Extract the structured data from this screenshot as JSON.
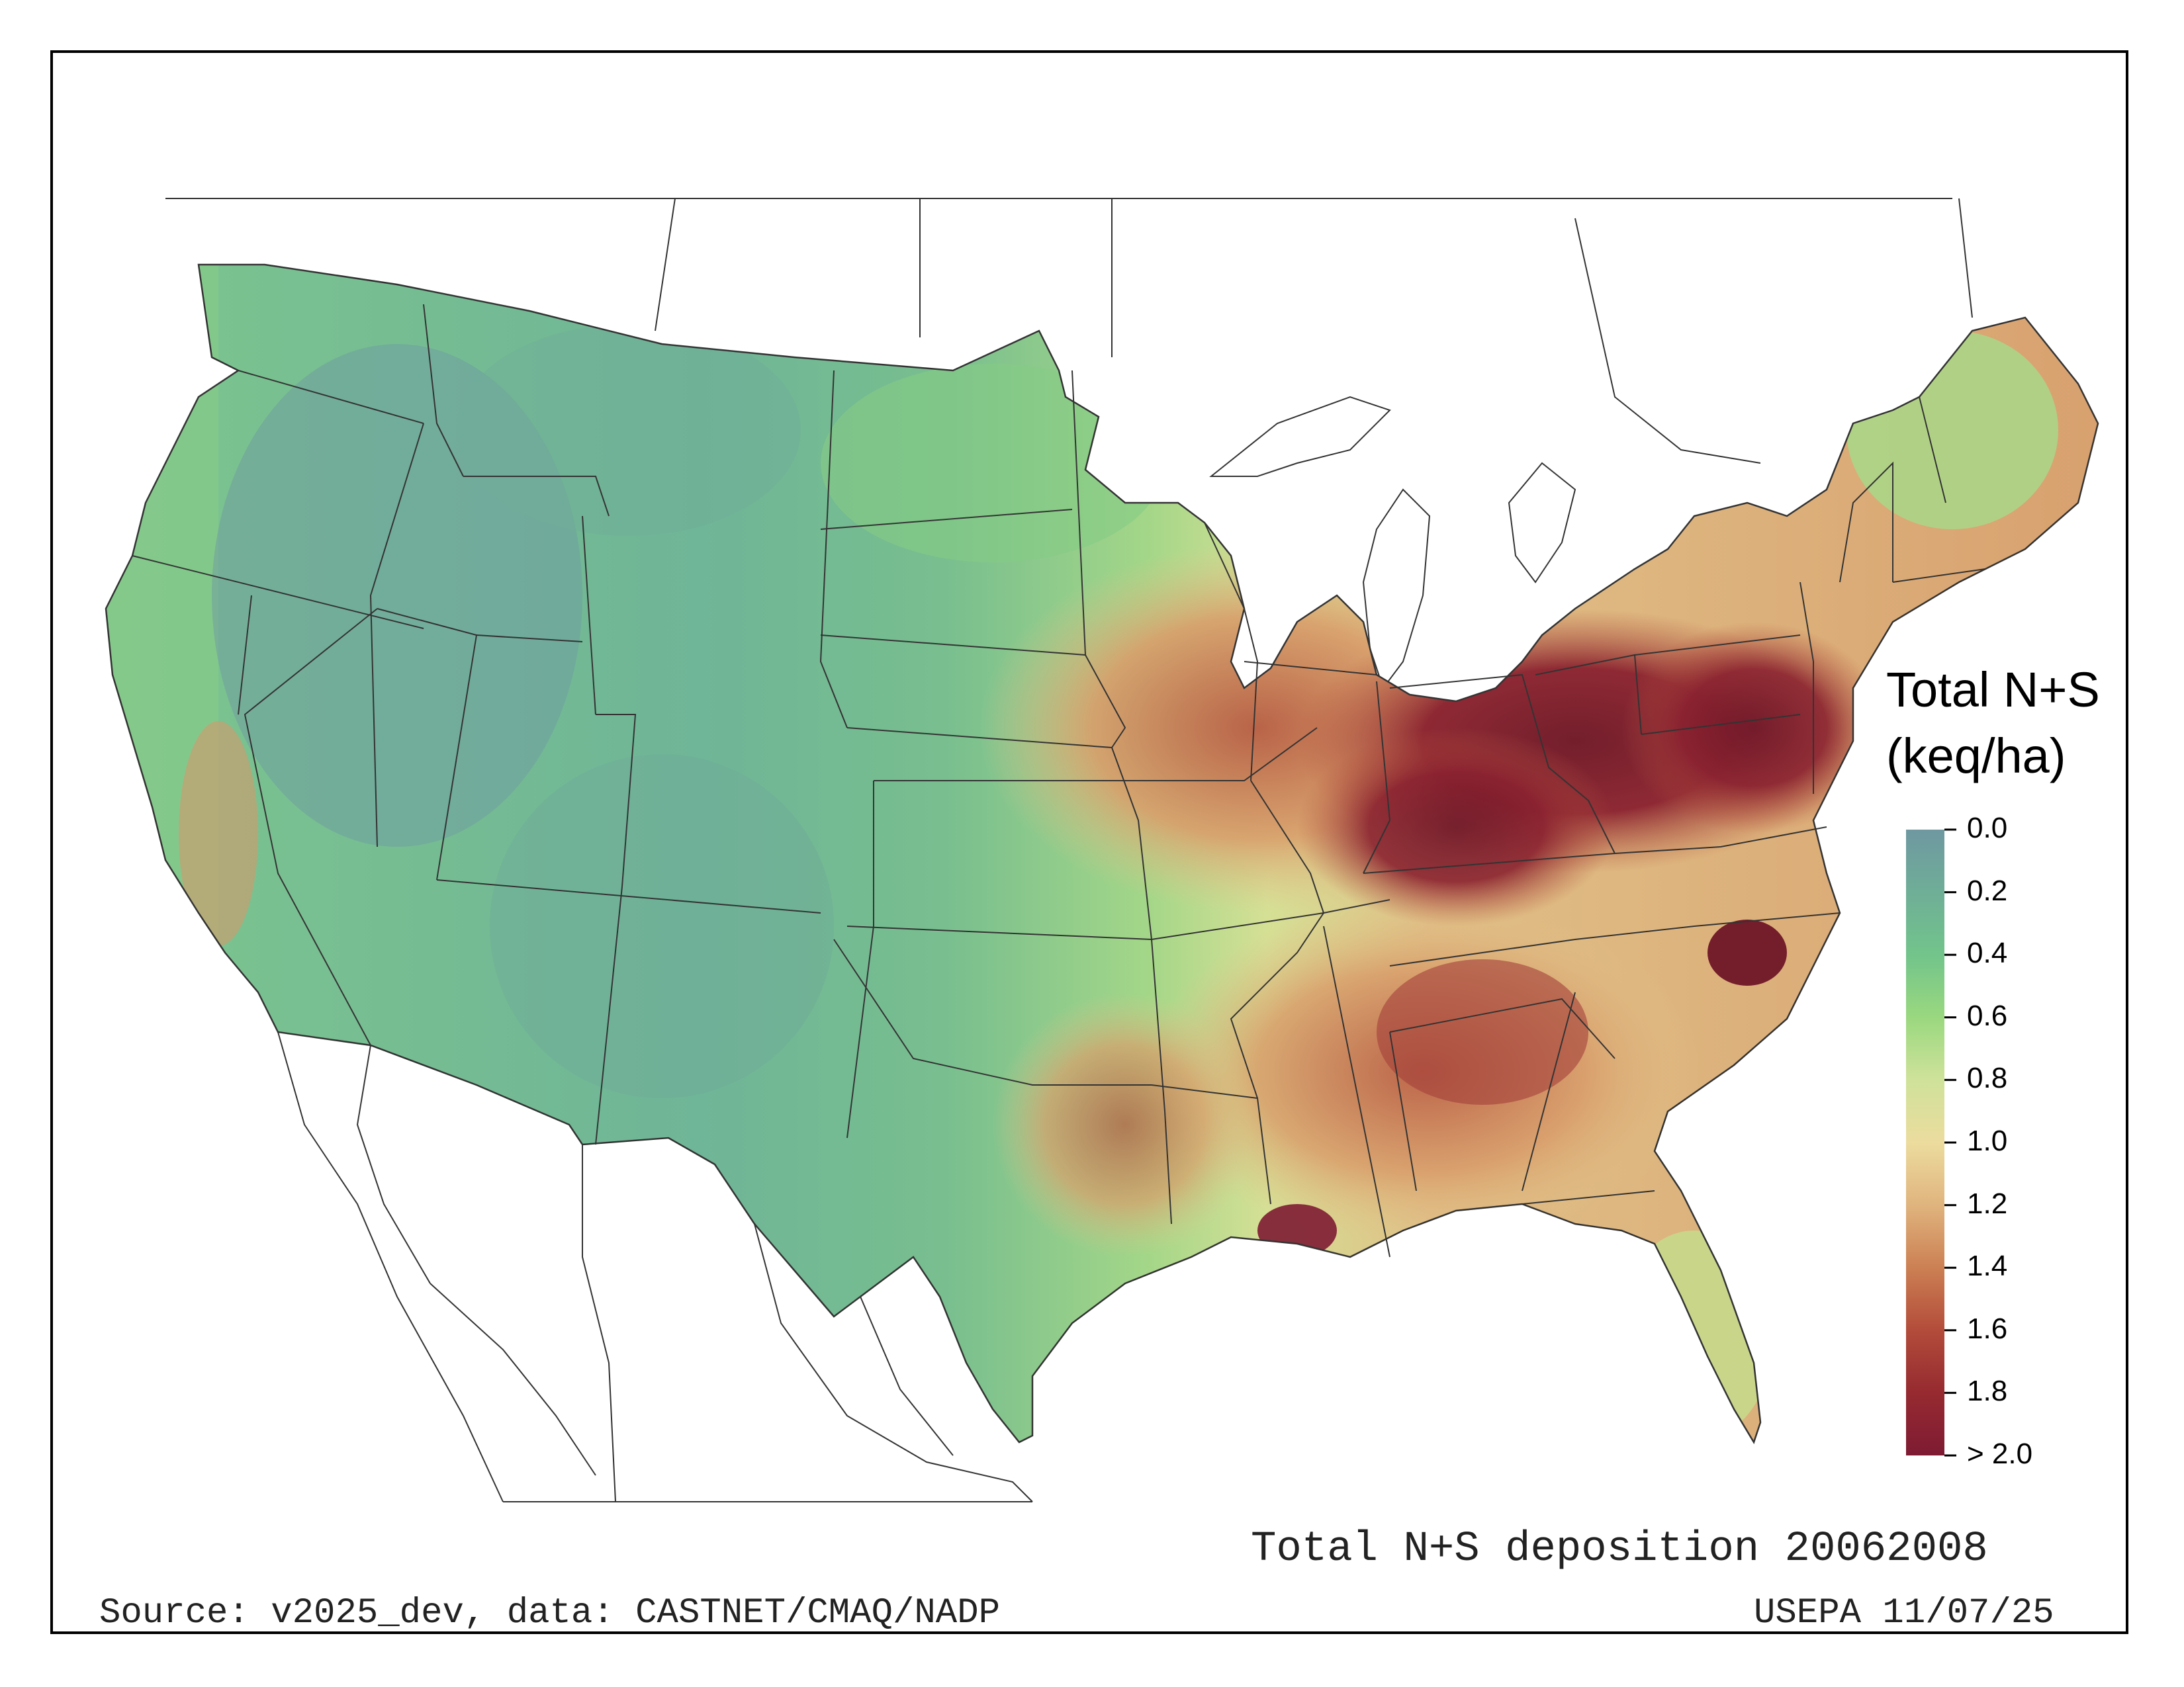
{
  "legend": {
    "title_line1": "Total N+S",
    "title_line2": "(keq/ha)",
    "ticks": [
      "0.0",
      "0.2",
      "0.4",
      "0.6",
      "0.8",
      "1.0",
      "1.2",
      "1.4",
      "1.6",
      "1.8",
      "> 2.0"
    ],
    "colors": [
      "#6f98a1",
      "#6fae97",
      "#72c48b",
      "#9ad87f",
      "#cfe29a",
      "#ecdc9e",
      "#e0b47e",
      "#cc8053",
      "#b34c3b",
      "#962a30",
      "#7e1b33"
    ]
  },
  "footer": {
    "title": "Total N+S deposition 20062008",
    "source": "Source: v2025_dev, data: CASTNET/CMAQ/NADP",
    "credit": "USEPA 11/07/25"
  },
  "regions": {
    "west_low": "#72b893",
    "mountain_mid": "#8fcf86",
    "plains_transition": "#c7df8f",
    "midwest": "#d99e6b",
    "ohio_valley_high": "#8a2230",
    "southeast": "#d8a06e",
    "florida": "#c4df8d",
    "new_england": "#a8d888"
  }
}
